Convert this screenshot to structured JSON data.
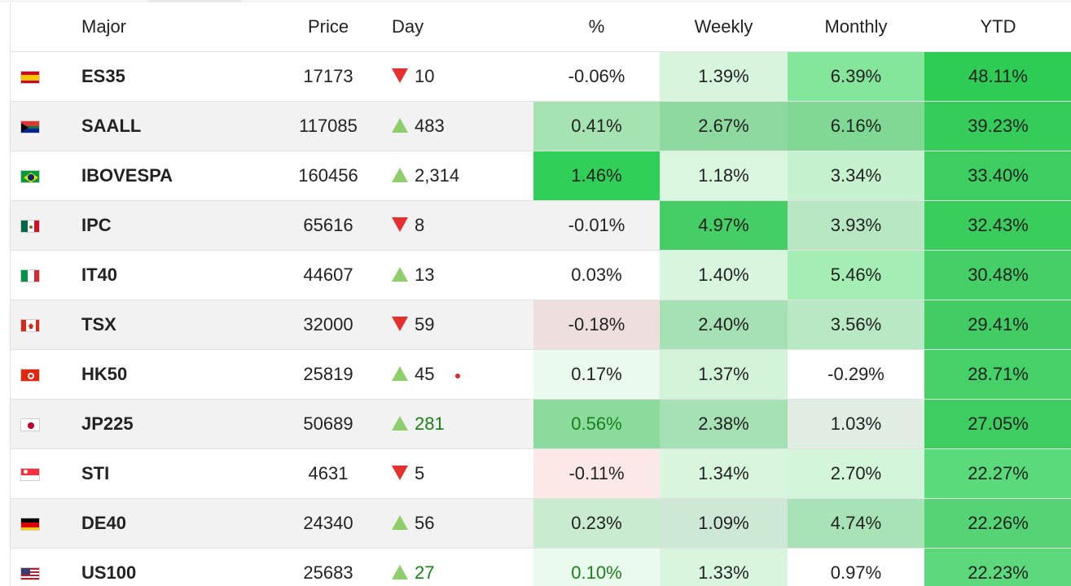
{
  "header": {
    "major": "Major",
    "price": "Price",
    "day": "Day",
    "pct": "%",
    "weekly": "Weekly",
    "monthly": "Monthly",
    "ytd": "YTD"
  },
  "rows": [
    {
      "flag": "spain-flag-icon",
      "name": "ES35",
      "price": "17173",
      "dir": "down",
      "day": "10",
      "pct": "-0.06%",
      "weekly": "1.39%",
      "monthly": "6.39%",
      "ytd": "48.11%"
    },
    {
      "flag": "south-africa-flag-icon",
      "name": "SAALL",
      "price": "117085",
      "dir": "up",
      "day": "483",
      "pct": "0.41%",
      "weekly": "2.67%",
      "monthly": "6.16%",
      "ytd": "39.23%"
    },
    {
      "flag": "brazil-flag-icon",
      "name": "IBOVESPA",
      "price": "160456",
      "dir": "up",
      "day": "2,314",
      "pct": "1.46%",
      "weekly": "1.18%",
      "monthly": "3.34%",
      "ytd": "33.40%"
    },
    {
      "flag": "mexico-flag-icon",
      "name": "IPC",
      "price": "65616",
      "dir": "down",
      "day": "8",
      "pct": "-0.01%",
      "weekly": "4.97%",
      "monthly": "3.93%",
      "ytd": "32.43%"
    },
    {
      "flag": "italy-flag-icon",
      "name": "IT40",
      "price": "44607",
      "dir": "up",
      "day": "13",
      "pct": "0.03%",
      "weekly": "1.40%",
      "monthly": "5.46%",
      "ytd": "30.48%"
    },
    {
      "flag": "canada-flag-icon",
      "name": "TSX",
      "price": "32000",
      "dir": "down",
      "day": "59",
      "pct": "-0.18%",
      "weekly": "2.40%",
      "monthly": "3.56%",
      "ytd": "29.41%"
    },
    {
      "flag": "hong-kong-flag-icon",
      "name": "HK50",
      "price": "25819",
      "dir": "up",
      "day": "45",
      "pct": "0.17%",
      "weekly": "1.37%",
      "monthly": "-0.29%",
      "ytd": "28.71%"
    },
    {
      "flag": "japan-flag-icon",
      "name": "JP225",
      "price": "50689",
      "dir": "up",
      "day": "281",
      "pct": "0.56%",
      "weekly": "2.38%",
      "monthly": "1.03%",
      "ytd": "27.05%"
    },
    {
      "flag": "singapore-flag-icon",
      "name": "STI",
      "price": "4631",
      "dir": "down",
      "day": "5",
      "pct": "-0.11%",
      "weekly": "1.34%",
      "monthly": "2.70%",
      "ytd": "22.27%"
    },
    {
      "flag": "germany-flag-icon",
      "name": "DE40",
      "price": "24340",
      "dir": "up",
      "day": "56",
      "pct": "0.23%",
      "weekly": "1.09%",
      "monthly": "4.74%",
      "ytd": "22.26%"
    },
    {
      "flag": "usa-flag-icon",
      "name": "US100",
      "price": "25683",
      "dir": "up",
      "day": "27",
      "pct": "0.10%",
      "weekly": "1.33%",
      "monthly": "0.97%",
      "ytd": "22.23%"
    }
  ],
  "colors": {
    "up_arrow": "#8fcf6b",
    "down_arrow": "#e53030",
    "heat_strong_green": "#2ecc55",
    "heat_light_red": "#fbe3e3"
  }
}
